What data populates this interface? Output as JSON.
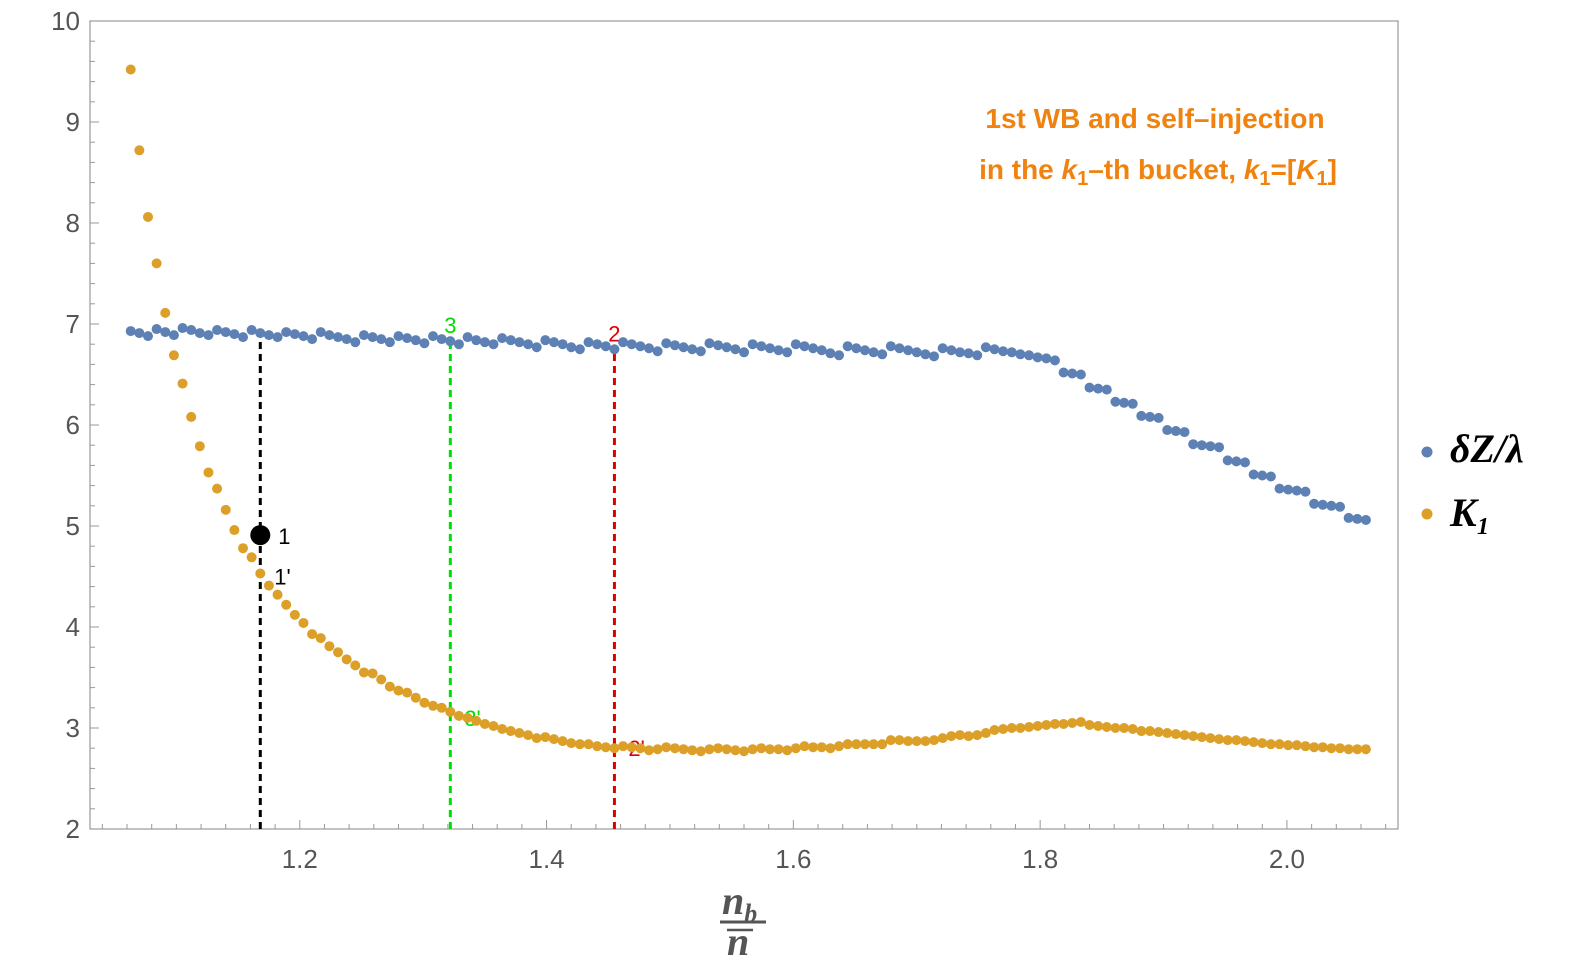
{
  "chart_data": {
    "type": "scatter",
    "title_line1": "1st WB and self–injection",
    "title_line2": {
      "a": "in the ",
      "b": "k",
      "c": "1",
      "d": "–th bucket, ",
      "e": "k",
      "f": "1",
      "g": "=[",
      "h": "K",
      "i": "1",
      "j": "]"
    },
    "xlabel": {
      "num_main": "n",
      "num_sub": "b",
      "den": "n"
    },
    "xlim": [
      1.03,
      2.09
    ],
    "ylim": [
      2,
      10
    ],
    "xticks": [
      {
        "value": 1.2,
        "label": "1.2"
      },
      {
        "value": 1.4,
        "label": "1.4"
      },
      {
        "value": 1.6,
        "label": "1.6"
      },
      {
        "value": 1.8,
        "label": "1.8"
      },
      {
        "value": 2.0,
        "label": "2.0"
      }
    ],
    "yticks": [
      {
        "value": 2,
        "label": "2"
      },
      {
        "value": 3,
        "label": "3"
      },
      {
        "value": 4,
        "label": "4"
      },
      {
        "value": 5,
        "label": "5"
      },
      {
        "value": 6,
        "label": "6"
      },
      {
        "value": 7,
        "label": "7"
      },
      {
        "value": 8,
        "label": "8"
      },
      {
        "value": 9,
        "label": "9"
      },
      {
        "value": 10,
        "label": "10"
      }
    ],
    "grid": false,
    "legend_position": "right",
    "series": [
      {
        "name": "δZ/λ",
        "color": "#5e81b5",
        "points": [
          [
            1.063,
            6.93
          ],
          [
            1.07,
            6.91
          ],
          [
            1.077,
            6.88
          ],
          [
            1.084,
            6.95
          ],
          [
            1.091,
            6.92
          ],
          [
            1.098,
            6.89
          ],
          [
            1.105,
            6.96
          ],
          [
            1.112,
            6.94
          ],
          [
            1.119,
            6.91
          ],
          [
            1.126,
            6.89
          ],
          [
            1.133,
            6.94
          ],
          [
            1.14,
            6.92
          ],
          [
            1.147,
            6.9
          ],
          [
            1.154,
            6.87
          ],
          [
            1.161,
            6.94
          ],
          [
            1.168,
            6.91
          ],
          [
            1.175,
            6.89
          ],
          [
            1.182,
            6.87
          ],
          [
            1.189,
            6.92
          ],
          [
            1.196,
            6.9
          ],
          [
            1.203,
            6.88
          ],
          [
            1.21,
            6.85
          ],
          [
            1.217,
            6.92
          ],
          [
            1.224,
            6.89
          ],
          [
            1.231,
            6.87
          ],
          [
            1.238,
            6.85
          ],
          [
            1.245,
            6.82
          ],
          [
            1.252,
            6.89
          ],
          [
            1.259,
            6.87
          ],
          [
            1.266,
            6.85
          ],
          [
            1.273,
            6.82
          ],
          [
            1.28,
            6.88
          ],
          [
            1.287,
            6.86
          ],
          [
            1.294,
            6.84
          ],
          [
            1.301,
            6.81
          ],
          [
            1.308,
            6.88
          ],
          [
            1.315,
            6.85
          ],
          [
            1.322,
            6.83
          ],
          [
            1.329,
            6.8
          ],
          [
            1.336,
            6.87
          ],
          [
            1.343,
            6.84
          ],
          [
            1.35,
            6.82
          ],
          [
            1.357,
            6.8
          ],
          [
            1.364,
            6.86
          ],
          [
            1.371,
            6.84
          ],
          [
            1.378,
            6.82
          ],
          [
            1.385,
            6.8
          ],
          [
            1.392,
            6.77
          ],
          [
            1.399,
            6.84
          ],
          [
            1.406,
            6.82
          ],
          [
            1.413,
            6.8
          ],
          [
            1.42,
            6.77
          ],
          [
            1.427,
            6.75
          ],
          [
            1.434,
            6.82
          ],
          [
            1.441,
            6.8
          ],
          [
            1.448,
            6.78
          ],
          [
            1.455,
            6.75
          ],
          [
            1.462,
            6.82
          ],
          [
            1.469,
            6.8
          ],
          [
            1.476,
            6.78
          ],
          [
            1.483,
            6.76
          ],
          [
            1.49,
            6.73
          ],
          [
            1.497,
            6.81
          ],
          [
            1.504,
            6.79
          ],
          [
            1.511,
            6.77
          ],
          [
            1.518,
            6.75
          ],
          [
            1.525,
            6.73
          ],
          [
            1.532,
            6.81
          ],
          [
            1.539,
            6.79
          ],
          [
            1.546,
            6.77
          ],
          [
            1.553,
            6.75
          ],
          [
            1.56,
            6.72
          ],
          [
            1.567,
            6.8
          ],
          [
            1.574,
            6.78
          ],
          [
            1.581,
            6.76
          ],
          [
            1.588,
            6.74
          ],
          [
            1.595,
            6.72
          ],
          [
            1.602,
            6.8
          ],
          [
            1.609,
            6.78
          ],
          [
            1.616,
            6.76
          ],
          [
            1.623,
            6.74
          ],
          [
            1.63,
            6.71
          ],
          [
            1.637,
            6.69
          ],
          [
            1.644,
            6.78
          ],
          [
            1.651,
            6.76
          ],
          [
            1.658,
            6.74
          ],
          [
            1.665,
            6.72
          ],
          [
            1.672,
            6.7
          ],
          [
            1.679,
            6.78
          ],
          [
            1.686,
            6.76
          ],
          [
            1.693,
            6.74
          ],
          [
            1.7,
            6.72
          ],
          [
            1.707,
            6.7
          ],
          [
            1.714,
            6.68
          ],
          [
            1.721,
            6.76
          ],
          [
            1.728,
            6.74
          ],
          [
            1.735,
            6.72
          ],
          [
            1.742,
            6.71
          ],
          [
            1.749,
            6.69
          ],
          [
            1.756,
            6.77
          ],
          [
            1.763,
            6.75
          ],
          [
            1.77,
            6.73
          ],
          [
            1.777,
            6.72
          ],
          [
            1.784,
            6.7
          ],
          [
            1.791,
            6.69
          ],
          [
            1.798,
            6.67
          ],
          [
            1.805,
            6.66
          ],
          [
            1.812,
            6.64
          ],
          [
            1.819,
            6.52
          ],
          [
            1.826,
            6.51
          ],
          [
            1.833,
            6.5
          ],
          [
            1.84,
            6.37
          ],
          [
            1.847,
            6.36
          ],
          [
            1.854,
            6.35
          ],
          [
            1.861,
            6.23
          ],
          [
            1.868,
            6.22
          ],
          [
            1.875,
            6.21
          ],
          [
            1.882,
            6.09
          ],
          [
            1.889,
            6.08
          ],
          [
            1.896,
            6.07
          ],
          [
            1.903,
            5.95
          ],
          [
            1.91,
            5.94
          ],
          [
            1.917,
            5.93
          ],
          [
            1.924,
            5.81
          ],
          [
            1.931,
            5.8
          ],
          [
            1.938,
            5.79
          ],
          [
            1.945,
            5.78
          ],
          [
            1.952,
            5.65
          ],
          [
            1.959,
            5.64
          ],
          [
            1.966,
            5.63
          ],
          [
            1.973,
            5.51
          ],
          [
            1.98,
            5.5
          ],
          [
            1.987,
            5.49
          ],
          [
            1.994,
            5.37
          ],
          [
            2.001,
            5.36
          ],
          [
            2.008,
            5.35
          ],
          [
            2.015,
            5.34
          ],
          [
            2.022,
            5.22
          ],
          [
            2.029,
            5.21
          ],
          [
            2.036,
            5.2
          ],
          [
            2.043,
            5.19
          ],
          [
            2.05,
            5.08
          ],
          [
            2.057,
            5.07
          ],
          [
            2.064,
            5.06
          ]
        ]
      },
      {
        "name": "K₁",
        "color": "#dc9f28",
        "points": [
          [
            1.063,
            9.52
          ],
          [
            1.07,
            8.72
          ],
          [
            1.077,
            8.06
          ],
          [
            1.084,
            7.6
          ],
          [
            1.091,
            7.11
          ],
          [
            1.098,
            6.69
          ],
          [
            1.105,
            6.41
          ],
          [
            1.112,
            6.08
          ],
          [
            1.119,
            5.79
          ],
          [
            1.126,
            5.53
          ],
          [
            1.133,
            5.37
          ],
          [
            1.14,
            5.16
          ],
          [
            1.147,
            4.96
          ],
          [
            1.154,
            4.78
          ],
          [
            1.161,
            4.69
          ],
          [
            1.168,
            4.53
          ],
          [
            1.175,
            4.41
          ],
          [
            1.182,
            4.32
          ],
          [
            1.189,
            4.22
          ],
          [
            1.196,
            4.12
          ],
          [
            1.203,
            4.04
          ],
          [
            1.21,
            3.93
          ],
          [
            1.217,
            3.89
          ],
          [
            1.224,
            3.81
          ],
          [
            1.231,
            3.75
          ],
          [
            1.238,
            3.68
          ],
          [
            1.245,
            3.62
          ],
          [
            1.252,
            3.55
          ],
          [
            1.259,
            3.54
          ],
          [
            1.266,
            3.48
          ],
          [
            1.273,
            3.41
          ],
          [
            1.28,
            3.37
          ],
          [
            1.287,
            3.35
          ],
          [
            1.294,
            3.3
          ],
          [
            1.301,
            3.25
          ],
          [
            1.308,
            3.22
          ],
          [
            1.315,
            3.2
          ],
          [
            1.322,
            3.16
          ],
          [
            1.329,
            3.12
          ],
          [
            1.336,
            3.1
          ],
          [
            1.343,
            3.07
          ],
          [
            1.35,
            3.04
          ],
          [
            1.357,
            3.02
          ],
          [
            1.364,
            2.99
          ],
          [
            1.371,
            2.97
          ],
          [
            1.378,
            2.95
          ],
          [
            1.385,
            2.93
          ],
          [
            1.392,
            2.9
          ],
          [
            1.399,
            2.91
          ],
          [
            1.406,
            2.89
          ],
          [
            1.413,
            2.87
          ],
          [
            1.42,
            2.85
          ],
          [
            1.427,
            2.84
          ],
          [
            1.434,
            2.84
          ],
          [
            1.441,
            2.82
          ],
          [
            1.448,
            2.81
          ],
          [
            1.455,
            2.8
          ],
          [
            1.462,
            2.82
          ],
          [
            1.469,
            2.81
          ],
          [
            1.476,
            2.8
          ],
          [
            1.483,
            2.78
          ],
          [
            1.49,
            2.79
          ],
          [
            1.497,
            2.81
          ],
          [
            1.504,
            2.8
          ],
          [
            1.511,
            2.79
          ],
          [
            1.518,
            2.78
          ],
          [
            1.525,
            2.77
          ],
          [
            1.532,
            2.79
          ],
          [
            1.539,
            2.8
          ],
          [
            1.546,
            2.79
          ],
          [
            1.553,
            2.78
          ],
          [
            1.56,
            2.77
          ],
          [
            1.567,
            2.79
          ],
          [
            1.574,
            2.8
          ],
          [
            1.581,
            2.79
          ],
          [
            1.588,
            2.79
          ],
          [
            1.595,
            2.78
          ],
          [
            1.602,
            2.8
          ],
          [
            1.609,
            2.82
          ],
          [
            1.616,
            2.81
          ],
          [
            1.623,
            2.81
          ],
          [
            1.63,
            2.8
          ],
          [
            1.637,
            2.82
          ],
          [
            1.644,
            2.84
          ],
          [
            1.651,
            2.84
          ],
          [
            1.658,
            2.84
          ],
          [
            1.665,
            2.84
          ],
          [
            1.672,
            2.84
          ],
          [
            1.679,
            2.88
          ],
          [
            1.686,
            2.88
          ],
          [
            1.693,
            2.87
          ],
          [
            1.7,
            2.87
          ],
          [
            1.707,
            2.87
          ],
          [
            1.714,
            2.88
          ],
          [
            1.721,
            2.9
          ],
          [
            1.728,
            2.92
          ],
          [
            1.735,
            2.93
          ],
          [
            1.742,
            2.92
          ],
          [
            1.749,
            2.93
          ],
          [
            1.756,
            2.95
          ],
          [
            1.763,
            2.98
          ],
          [
            1.77,
            2.99
          ],
          [
            1.777,
            3.0
          ],
          [
            1.784,
            3.0
          ],
          [
            1.791,
            3.01
          ],
          [
            1.798,
            3.02
          ],
          [
            1.805,
            3.03
          ],
          [
            1.812,
            3.04
          ],
          [
            1.819,
            3.04
          ],
          [
            1.826,
            3.05
          ],
          [
            1.833,
            3.06
          ],
          [
            1.84,
            3.03
          ],
          [
            1.847,
            3.02
          ],
          [
            1.854,
            3.01
          ],
          [
            1.861,
            3.0
          ],
          [
            1.868,
            3.0
          ],
          [
            1.875,
            2.99
          ],
          [
            1.882,
            2.97
          ],
          [
            1.889,
            2.97
          ],
          [
            1.896,
            2.96
          ],
          [
            1.903,
            2.95
          ],
          [
            1.91,
            2.94
          ],
          [
            1.917,
            2.93
          ],
          [
            1.924,
            2.92
          ],
          [
            1.931,
            2.91
          ],
          [
            1.938,
            2.9
          ],
          [
            1.945,
            2.89
          ],
          [
            1.952,
            2.88
          ],
          [
            1.959,
            2.88
          ],
          [
            1.966,
            2.87
          ],
          [
            1.973,
            2.86
          ],
          [
            1.98,
            2.85
          ],
          [
            1.987,
            2.84
          ],
          [
            1.994,
            2.84
          ],
          [
            2.001,
            2.83
          ],
          [
            2.008,
            2.83
          ],
          [
            2.015,
            2.82
          ],
          [
            2.022,
            2.81
          ],
          [
            2.029,
            2.81
          ],
          [
            2.036,
            2.8
          ],
          [
            2.043,
            2.8
          ],
          [
            2.05,
            2.79
          ],
          [
            2.057,
            2.79
          ],
          [
            2.064,
            2.79
          ]
        ]
      }
    ],
    "markers": [
      {
        "label": "1",
        "x": 1.168,
        "y": 4.91,
        "color": "#000000"
      }
    ],
    "vlines": [
      {
        "x": 1.168,
        "y_top": 6.93,
        "color": "#000000",
        "top_label": "",
        "bottom_label": "1'",
        "bottom_y": 4.5
      },
      {
        "x": 1.322,
        "y_top": 6.83,
        "color": "#00dd00",
        "top_label": "3",
        "bottom_label": "3'",
        "bottom_y": 3.1
      },
      {
        "x": 1.455,
        "y_top": 6.75,
        "color": "#dd0000",
        "top_label": "2",
        "bottom_label": "2'",
        "bottom_y": 2.8
      }
    ],
    "title_color": "#f0820f"
  }
}
